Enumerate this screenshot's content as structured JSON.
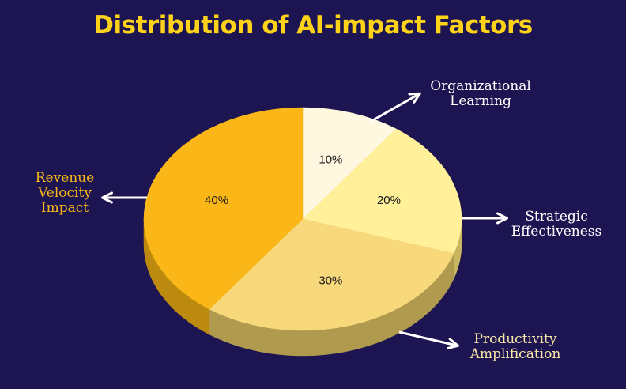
{
  "title": "Distribution of AI-impact Factors",
  "chart_data": {
    "type": "pie",
    "title": "Distribution of AI-impact Factors",
    "three_d": true,
    "categories": [
      "Organizational Learning",
      "Strategic Effectiveness",
      "Productivity Amplification",
      "Revenue Velocity Impact"
    ],
    "values": [
      10,
      20,
      30,
      40
    ],
    "value_labels": [
      "10%",
      "20%",
      "30%",
      "40%"
    ],
    "label_lines": [
      [
        "Organizational",
        "Learning"
      ],
      [
        "Strategic",
        "Effectiveness"
      ],
      [
        "Productivity",
        "Amplification"
      ],
      [
        "Revenue",
        "Velocity",
        "Impact"
      ]
    ],
    "colors": [
      "#fff7e0",
      "#fff099",
      "#f7d87a",
      "#fbb718"
    ],
    "side_colors": [
      "#c9bd8a",
      "#c9b660",
      "#b09a4e",
      "#bd8a10"
    ],
    "label_colors": [
      "#ffffff",
      "#ffffff",
      "#fbe7a6",
      "#fbb718"
    ]
  }
}
